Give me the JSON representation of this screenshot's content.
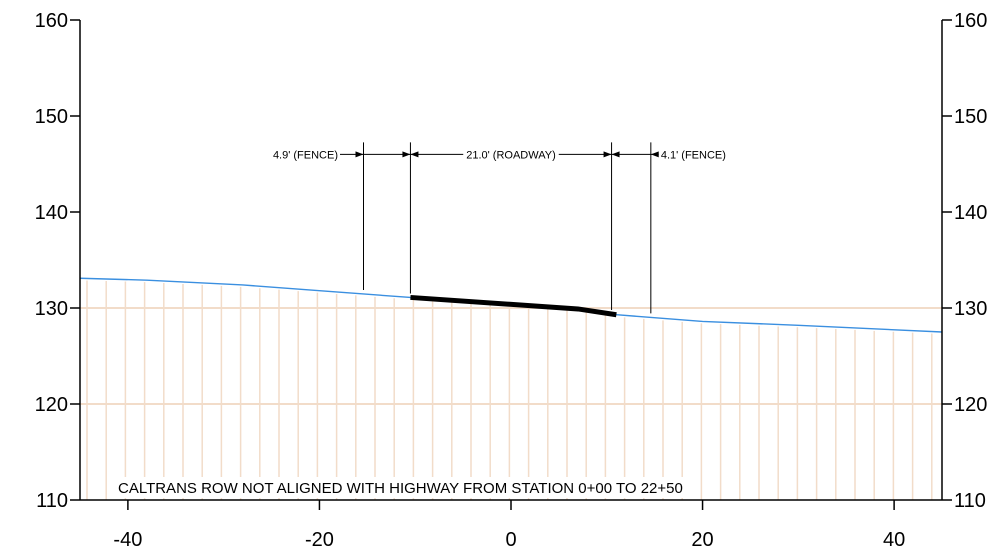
{
  "chart_data": {
    "type": "line",
    "xlim": [
      -45,
      45
    ],
    "ylim": [
      110,
      160
    ],
    "x_ticks": [
      -40,
      -20,
      0,
      20,
      40
    ],
    "x_tick_labels": [
      "-40",
      "-20",
      "0",
      "20",
      "40"
    ],
    "y_ticks": [
      110,
      120,
      130,
      140,
      150,
      160
    ],
    "y_tick_labels": [
      "110",
      "120",
      "130",
      "140",
      "150",
      "160"
    ],
    "grid": "horizontal lines at y ticks; vertical hatch lines below ground profile",
    "colors": {
      "ground": "#3a8fe0",
      "hatch": "#f2dcc9",
      "roadway": "#000000",
      "axes": "#000000"
    },
    "series": [
      {
        "x": [
          -45,
          -38,
          -28,
          -20,
          -10.5,
          0,
          7,
          11,
          20,
          30,
          45
        ],
        "y": [
          133.1,
          132.9,
          132.4,
          131.8,
          131.1,
          130.5,
          129.9,
          129.3,
          128.6,
          128.2,
          127.5
        ]
      },
      {
        "x": [
          -10.5,
          7,
          11
        ],
        "y": [
          131.1,
          129.9,
          129.3
        ]
      }
    ],
    "dimensions": {
      "x_positions": [
        -15.4,
        -10.5,
        10.5,
        14.6
      ],
      "y": 146,
      "labels": [
        "4.9' (FENCE)",
        "21.0' (ROADWAY)",
        "4.1' (FENCE)"
      ]
    },
    "annotations": [
      "CALTRANS ROW NOT ALIGNED WITH HIGHWAY FROM STATION 0+00 TO 22+50"
    ]
  }
}
